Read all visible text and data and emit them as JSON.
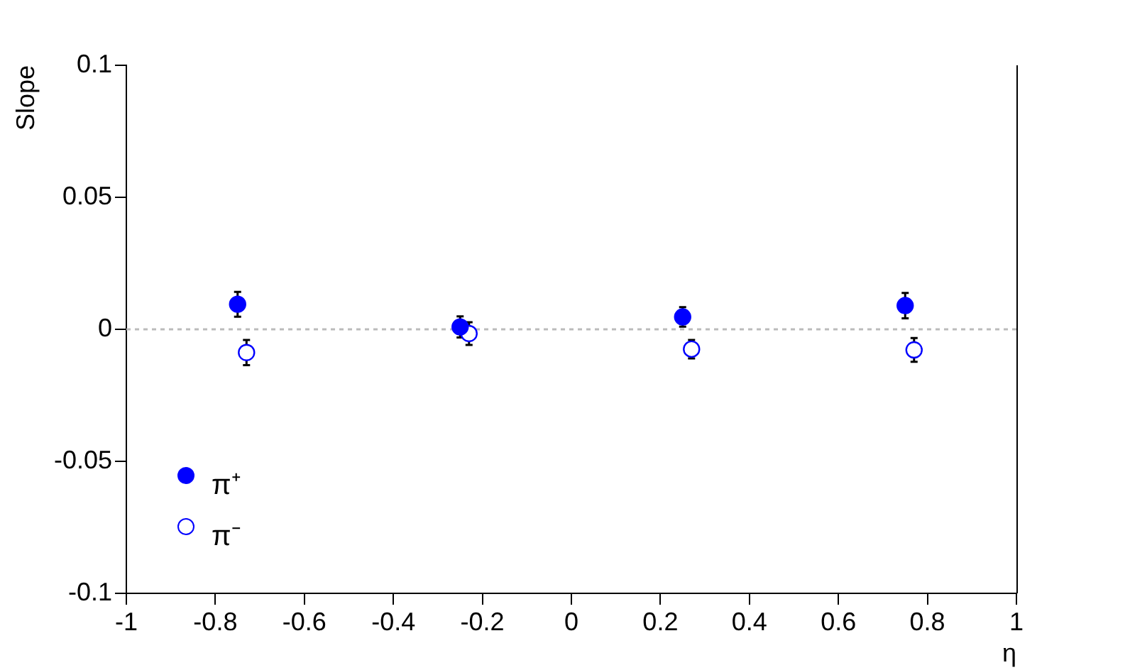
{
  "chart_data": {
    "type": "scatter",
    "ylabel": "Slope",
    "xlabel": "η",
    "xlim": [
      -1,
      1
    ],
    "xticks": [
      -1,
      -0.8,
      -0.6,
      -0.4,
      -0.2,
      0,
      0.2,
      0.4,
      0.6,
      0.8,
      1
    ],
    "ylim": [
      -0.1,
      0.1
    ],
    "yticks": [
      -0.1,
      -0.05,
      0,
      0.05,
      0.1
    ],
    "grid": false,
    "legend": "bottom left",
    "marker": "circle",
    "series": [
      {
        "name": "π⁺",
        "color": "#0000ff",
        "x": [
          -0.75,
          -0.25,
          0.25,
          0.75
        ],
        "values": [
          0.0095,
          0.0009,
          0.0047,
          0.009
        ],
        "errors": [
          0.0047,
          0.004,
          0.0037,
          0.0048
        ]
      },
      {
        "name": "π⁻",
        "color": "#0000ff",
        "x": [
          -0.73,
          -0.23,
          0.27,
          0.77
        ],
        "values": [
          -0.0088,
          -0.0016,
          -0.0075,
          -0.0078
        ],
        "errors": [
          0.0048,
          0.0043,
          0.0035,
          0.0045
        ]
      }
    ],
    "ref_lines": [
      {
        "axis": "y",
        "value": 0,
        "color": "#bbbbbb",
        "line_style": "dotted"
      }
    ]
  }
}
